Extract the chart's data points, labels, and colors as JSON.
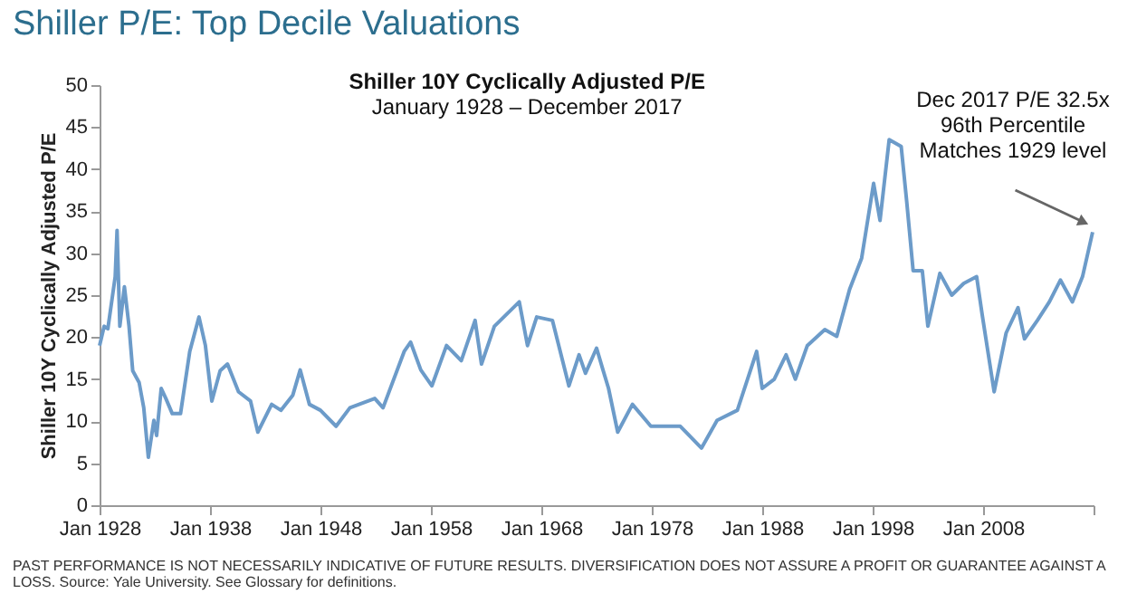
{
  "chart_data": {
    "type": "line",
    "title": "Shiller P/E: Top Decile Valuations",
    "subtitle": "Shiller 10Y Cyclically Adjusted P/E\nJanuary 1928 – December 2017",
    "ylabel": "Shiller 10Y Cyclically Adjusted P/E",
    "xlim": [
      "1928-01",
      "2018-01"
    ],
    "xticks": [
      {
        "value": "1928-01",
        "label": "Jan 1928"
      },
      {
        "value": "1938-01",
        "label": "Jan 1938"
      },
      {
        "value": "1948-01",
        "label": "Jan 1948"
      },
      {
        "value": "1958-01",
        "label": "Jan 1958"
      },
      {
        "value": "1968-01",
        "label": "Jan 1968"
      },
      {
        "value": "1978-01",
        "label": "Jan 1978"
      },
      {
        "value": "1988-01",
        "label": "Jan 1988"
      },
      {
        "value": "1998-01",
        "label": "Jan 1998"
      },
      {
        "value": "2008-01",
        "label": "Jan 2008"
      },
      {
        "value": "2018-01",
        "label": null
      }
    ],
    "ylim": [
      0,
      50
    ],
    "yticks": [
      0,
      5,
      10,
      15,
      20,
      25,
      30,
      35,
      40,
      45,
      50
    ],
    "grid": false,
    "marker": "none",
    "line_style": "solid",
    "x": [
      "1928-01",
      "1928-06",
      "1928-10",
      "1929-06",
      "1929-08",
      "1929-11",
      "1930-04",
      "1930-09",
      "1931-01",
      "1931-08",
      "1932-01",
      "1932-06",
      "1932-12",
      "1933-03",
      "1933-08",
      "1934-01",
      "1934-08",
      "1935-05",
      "1936-03",
      "1937-01",
      "1937-08",
      "1938-03",
      "1938-12",
      "1939-08",
      "1940-08",
      "1941-09",
      "1942-05",
      "1943-08",
      "1944-06",
      "1945-07",
      "1946-03",
      "1947-01",
      "1948-01",
      "1949-06",
      "1950-09",
      "1952-12",
      "1953-09",
      "1955-08",
      "1956-03",
      "1957-02",
      "1958-02",
      "1959-06",
      "1960-10",
      "1962-01",
      "1962-08",
      "1963-10",
      "1966-01",
      "1966-10",
      "1967-08",
      "1969-01",
      "1970-07",
      "1971-06",
      "1972-01",
      "1973-01",
      "1973-08",
      "1974-02",
      "1974-12",
      "1976-04",
      "1977-12",
      "1980-08",
      "1982-07",
      "1983-12",
      "1985-10",
      "1987-07",
      "1988-01",
      "1989-02",
      "1990-03",
      "1991-01",
      "1992-02",
      "1993-09",
      "1994-10",
      "1995-12",
      "1997-01",
      "1998-02",
      "1998-09",
      "1999-07",
      "2000-08",
      "2001-02",
      "2001-09",
      "2002-07",
      "2003-01",
      "2004-02",
      "2005-03",
      "2006-04",
      "2007-06",
      "2007-12",
      "2009-01",
      "2010-02",
      "2011-03",
      "2011-10",
      "2012-12",
      "2014-01",
      "2015-01",
      "2016-02",
      "2017-01",
      "2017-12"
    ],
    "series": [
      {
        "color": "#6c9bc9",
        "values": [
          19.0,
          21.3,
          21.0,
          27.2,
          32.7,
          21.3,
          26.0,
          21.3,
          16.0,
          14.6,
          11.6,
          5.7,
          10.1,
          8.3,
          13.9,
          12.7,
          10.9,
          10.9,
          18.3,
          22.4,
          19.0,
          12.4,
          16.0,
          16.8,
          13.5,
          12.4,
          8.7,
          12.0,
          11.3,
          13.1,
          16.1,
          12.0,
          11.3,
          9.4,
          11.6,
          12.7,
          11.6,
          18.3,
          19.4,
          16.1,
          14.2,
          19.0,
          17.2,
          22.0,
          16.8,
          21.3,
          24.2,
          19.0,
          22.4,
          22.0,
          14.2,
          17.9,
          15.7,
          18.7,
          16.1,
          13.9,
          8.7,
          12.0,
          9.4,
          9.4,
          6.8,
          10.1,
          11.3,
          18.3,
          13.9,
          15.0,
          17.9,
          15.0,
          19.0,
          20.9,
          20.1,
          25.7,
          29.4,
          38.3,
          33.9,
          43.5,
          42.7,
          36.1,
          27.9,
          27.9,
          21.3,
          27.6,
          25.0,
          26.4,
          27.2,
          22.7,
          13.5,
          20.5,
          23.5,
          19.8,
          22.0,
          24.2,
          26.8,
          24.2,
          27.2,
          32.5
        ]
      }
    ],
    "annotations": [
      {
        "text": "Dec 2017 P/E 32.5x\n96th Percentile\nMatches 1929 level",
        "x": "2017-12",
        "y": 32.5
      },
      "PAST PERFORMANCE IS NOT NECESSARILY INDICATIVE OF FUTURE RESULTS. DIVERSIFICATION DOES NOT ASSURE A PROFIT OR GUARANTEE AGAINST A\nLOSS. Source: Yale University. See Glossary for definitions."
    ]
  }
}
